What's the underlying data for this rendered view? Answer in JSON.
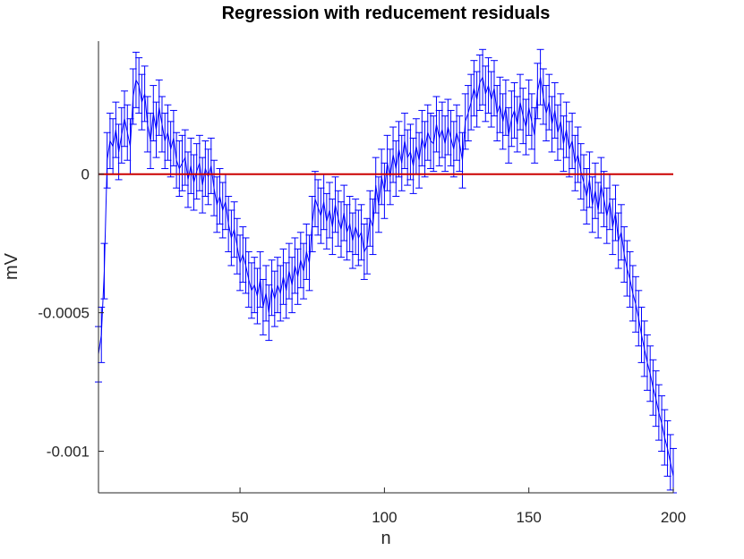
{
  "chart_data": {
    "type": "line",
    "title": "Regression with reducement residuals",
    "xlabel": "n",
    "ylabel": "mV",
    "xlim": [
      1,
      200
    ],
    "ylim": [
      -0.00115,
      0.00048
    ],
    "xticks": [
      50,
      100,
      150,
      200
    ],
    "xtick_labels": [
      "50",
      "100",
      "150",
      "200"
    ],
    "yticks": [
      0,
      -0.0005,
      -0.001
    ],
    "ytick_labels": [
      "0",
      "-0.0005",
      "-0.001"
    ],
    "grid": false,
    "legend": "none",
    "error_bar_halfwidth": 0.0001,
    "series": [
      {
        "color": "#0000ff",
        "style": "line-with-errorbars",
        "x": [
          1,
          2,
          3,
          4,
          5,
          6,
          7,
          8,
          9,
          10,
          11,
          12,
          13,
          14,
          15,
          16,
          17,
          18,
          19,
          20,
          21,
          22,
          23,
          24,
          25,
          26,
          27,
          28,
          29,
          30,
          31,
          32,
          33,
          34,
          35,
          36,
          37,
          38,
          39,
          40,
          41,
          42,
          43,
          44,
          45,
          46,
          47,
          48,
          49,
          50,
          51,
          52,
          53,
          54,
          55,
          56,
          57,
          58,
          59,
          60,
          61,
          62,
          63,
          64,
          65,
          66,
          67,
          68,
          69,
          70,
          71,
          72,
          73,
          74,
          75,
          76,
          77,
          78,
          79,
          80,
          81,
          82,
          83,
          84,
          85,
          86,
          87,
          88,
          89,
          90,
          91,
          92,
          93,
          94,
          95,
          96,
          97,
          98,
          99,
          100,
          101,
          102,
          103,
          104,
          105,
          106,
          107,
          108,
          109,
          110,
          111,
          112,
          113,
          114,
          115,
          116,
          117,
          118,
          119,
          120,
          121,
          122,
          123,
          124,
          125,
          126,
          127,
          128,
          129,
          130,
          131,
          132,
          133,
          134,
          135,
          136,
          137,
          138,
          139,
          140,
          141,
          142,
          143,
          144,
          145,
          146,
          147,
          148,
          149,
          150,
          151,
          152,
          153,
          154,
          155,
          156,
          157,
          158,
          159,
          160,
          161,
          162,
          163,
          164,
          165,
          166,
          167,
          168,
          169,
          170,
          171,
          172,
          173,
          174,
          175,
          176,
          177,
          178,
          179,
          180,
          181,
          182,
          183,
          184,
          185,
          186,
          187,
          188,
          189,
          190,
          191,
          192,
          193,
          194,
          195,
          196,
          197,
          198,
          199,
          200
        ],
        "y": [
          -0.00065,
          -0.00058,
          -0.00035,
          5e-05,
          0.00012,
          0.0001,
          0.00016,
          8e-05,
          0.00014,
          0.0002,
          0.00015,
          0.0001,
          0.00028,
          0.00034,
          0.00032,
          0.00026,
          0.00029,
          0.00018,
          0.00012,
          0.00022,
          0.00016,
          0.00024,
          0.00018,
          0.00012,
          0.00015,
          9e-05,
          0.00013,
          5e-05,
          2e-05,
          4e-05,
          6e-05,
          -2e-05,
          3e-05,
          -3e-05,
          1e-05,
          4e-05,
          -4e-05,
          2e-05,
          -1e-05,
          3e-05,
          -5e-05,
          -0.00011,
          -8e-05,
          -0.00013,
          -0.0001,
          -0.00018,
          -0.00023,
          -0.0002,
          -0.00026,
          -0.00032,
          -0.00029,
          -0.00033,
          -0.00038,
          -0.00042,
          -0.0004,
          -0.00044,
          -0.00038,
          -0.00048,
          -0.00043,
          -0.0005,
          -0.00041,
          -0.00045,
          -0.0004,
          -0.00043,
          -0.00037,
          -0.00042,
          -0.00035,
          -0.0004,
          -0.00033,
          -0.00037,
          -0.00031,
          -0.00035,
          -0.00028,
          -0.00032,
          -0.00018,
          -9e-05,
          -0.00012,
          -0.00015,
          -0.0001,
          -0.00017,
          -0.00013,
          -0.00019,
          -0.00011,
          -0.00016,
          -0.0002,
          -0.00014,
          -0.00021,
          -0.00018,
          -0.00024,
          -0.00019,
          -0.00023,
          -0.00021,
          -0.00028,
          -0.00026,
          -0.00016,
          -0.00019,
          -4e-05,
          -0.00011,
          -1e-05,
          -6e-05,
          4e-05,
          -1e-05,
          7e-05,
          2e-05,
          9e-05,
          4e-05,
          0.00012,
          6e-05,
          8e-05,
          3e-05,
          0.0001,
          5e-05,
          0.00013,
          9e-05,
          0.00015,
          0.00012,
          0.00011,
          0.00018,
          0.00013,
          0.00016,
          0.00011,
          0.00017,
          0.00013,
          9e-05,
          0.00015,
          0.00011,
          5e-05,
          0.00019,
          0.00022,
          0.00026,
          0.00031,
          0.00027,
          0.00033,
          0.00035,
          0.00029,
          0.00032,
          0.00027,
          0.00031,
          0.00022,
          0.00025,
          0.00019,
          0.00024,
          0.00014,
          0.0002,
          0.00023,
          0.00018,
          0.00026,
          0.00021,
          0.00017,
          0.00024,
          0.00019,
          0.00014,
          0.0003,
          0.00035,
          0.00028,
          0.00022,
          0.00026,
          0.00018,
          0.00023,
          0.00015,
          0.00019,
          0.00011,
          0.00016,
          9e-05,
          0.00012,
          4e-05,
          7e-05,
          1e-05,
          -3e-05,
          -8e-05,
          -2e-05,
          -0.00011,
          -6e-05,
          -0.00013,
          -4e-05,
          -9e-05,
          -0.00015,
          -0.0001,
          -0.00019,
          -0.00014,
          -0.00024,
          -0.00021,
          -0.00029,
          -0.00034,
          -0.00038,
          -0.00043,
          -0.00047,
          -0.00052,
          -0.00058,
          -0.00063,
          -0.00068,
          -0.00072,
          -0.00077,
          -0.00081,
          -0.00086,
          -0.0009,
          -0.00095,
          -0.00099,
          -0.00104,
          -0.00109
        ]
      },
      {
        "color": "#cc0000",
        "style": "line",
        "x": [
          1,
          200
        ],
        "y": [
          0,
          0
        ]
      }
    ]
  }
}
